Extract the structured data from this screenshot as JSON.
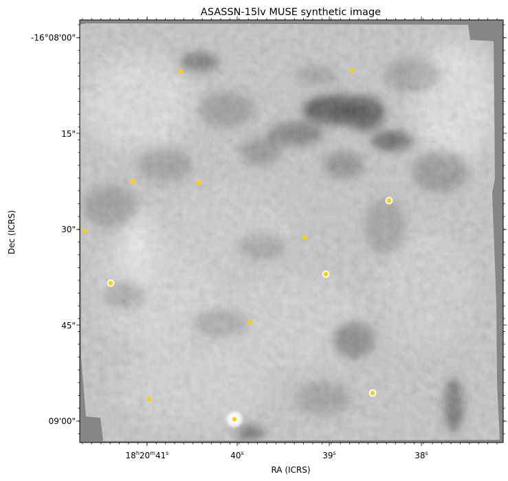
{
  "figure": {
    "title": "ASASSN-15lv MUSE synthetic image",
    "xlabel": "RA (ICRS)",
    "ylabel": "Dec (ICRS)",
    "colormap": "gray",
    "marker_color": "#ffd000",
    "ra_ticks": [
      {
        "h": "18",
        "m": "20",
        "s": "41",
        "full": true
      },
      {
        "s": "40"
      },
      {
        "s": "39"
      },
      {
        "s": "38"
      }
    ],
    "dec_ticks": [
      "-16°08'00\"",
      "15\"",
      "30\"",
      "45\"",
      "09'00\""
    ],
    "ra_units": {
      "h": "h",
      "m": "m",
      "s": "s"
    },
    "sources_count_note": ""
  },
  "chart_data": {
    "type": "image",
    "title": "ASASSN-15lv MUSE synthetic image",
    "xlabel": "RA (ICRS)",
    "ylabel": "Dec (ICRS)",
    "x_tick_labels": [
      "18h20m41s",
      "40s",
      "39s",
      "38s"
    ],
    "y_tick_labels": [
      "-16°08'00\"",
      "15\"",
      "30\"",
      "45\"",
      "09'00\""
    ],
    "marked_sources": 13
  }
}
